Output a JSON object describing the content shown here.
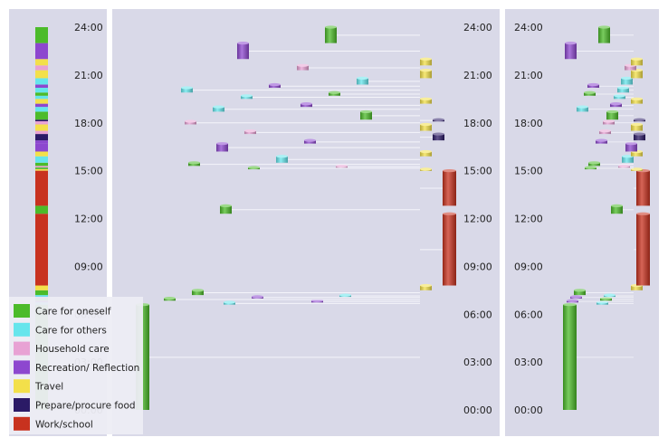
{
  "chart_data": {
    "type": "timeline",
    "y_unit": "hour of day",
    "ylim": [
      0,
      24
    ],
    "tick_labels": [
      "24:00",
      "21:00",
      "18:00",
      "15:00",
      "12:00",
      "09:00",
      "06:00",
      "03:00",
      "00:00"
    ],
    "tick_values": [
      24,
      21,
      18,
      15,
      12,
      9,
      6,
      3,
      0
    ],
    "categories": [
      {
        "name": "Care for oneself",
        "color": "#4cbb2a"
      },
      {
        "name": "Care for others",
        "color": "#66e5ec"
      },
      {
        "name": "Household care",
        "color": "#e8a2d4"
      },
      {
        "name": "Recreation/ Reflection",
        "color": "#8d47cf"
      },
      {
        "name": "Travel",
        "color": "#f3e04a"
      },
      {
        "name": "Prepare/procure food",
        "color": "#2b1a66"
      },
      {
        "name": "Work/school",
        "color": "#c8321f"
      }
    ],
    "panels": [
      {
        "name": "left",
        "kind": "stacked-bar"
      },
      {
        "name": "middle",
        "kind": "spread-timeline"
      },
      {
        "name": "right",
        "kind": "compact-timeline"
      }
    ],
    "segments": [
      {
        "start": 0.0,
        "end": 6.6,
        "category": "Care for oneself"
      },
      {
        "start": 6.6,
        "end": 6.75,
        "category": "Care for others"
      },
      {
        "start": 6.75,
        "end": 6.85,
        "category": "Recreation/ Reflection"
      },
      {
        "start": 6.85,
        "end": 7.0,
        "category": "Care for oneself"
      },
      {
        "start": 7.0,
        "end": 7.1,
        "category": "Recreation/ Reflection"
      },
      {
        "start": 7.1,
        "end": 7.2,
        "category": "Care for others"
      },
      {
        "start": 7.2,
        "end": 7.5,
        "category": "Care for oneself"
      },
      {
        "start": 7.5,
        "end": 7.8,
        "category": "Travel"
      },
      {
        "start": 7.8,
        "end": 12.3,
        "category": "Work/school"
      },
      {
        "start": 12.3,
        "end": 12.8,
        "category": "Care for oneself"
      },
      {
        "start": 12.8,
        "end": 15.0,
        "category": "Work/school"
      },
      {
        "start": 15.0,
        "end": 15.1,
        "category": "Travel"
      },
      {
        "start": 15.1,
        "end": 15.2,
        "category": "Care for oneself"
      },
      {
        "start": 15.2,
        "end": 15.3,
        "category": "Household care"
      },
      {
        "start": 15.3,
        "end": 15.5,
        "category": "Care for oneself"
      },
      {
        "start": 15.5,
        "end": 15.9,
        "category": "Care for others"
      },
      {
        "start": 15.9,
        "end": 16.2,
        "category": "Travel"
      },
      {
        "start": 16.2,
        "end": 16.7,
        "category": "Recreation/ Reflection"
      },
      {
        "start": 16.7,
        "end": 16.9,
        "category": "Recreation/ Reflection"
      },
      {
        "start": 16.9,
        "end": 17.3,
        "category": "Prepare/procure food"
      },
      {
        "start": 17.3,
        "end": 17.5,
        "category": "Household care"
      },
      {
        "start": 17.5,
        "end": 17.9,
        "category": "Travel"
      },
      {
        "start": 17.9,
        "end": 18.1,
        "category": "Household care"
      },
      {
        "start": 18.1,
        "end": 18.2,
        "category": "Prepare/procure food"
      },
      {
        "start": 18.2,
        "end": 18.7,
        "category": "Care for oneself"
      },
      {
        "start": 18.7,
        "end": 19.0,
        "category": "Care for others"
      },
      {
        "start": 19.0,
        "end": 19.2,
        "category": "Recreation/ Reflection"
      },
      {
        "start": 19.2,
        "end": 19.5,
        "category": "Travel"
      },
      {
        "start": 19.5,
        "end": 19.7,
        "category": "Care for others"
      },
      {
        "start": 19.7,
        "end": 19.9,
        "category": "Care for oneself"
      },
      {
        "start": 19.9,
        "end": 20.2,
        "category": "Care for others"
      },
      {
        "start": 20.2,
        "end": 20.4,
        "category": "Recreation/ Reflection"
      },
      {
        "start": 20.4,
        "end": 20.8,
        "category": "Care for others"
      },
      {
        "start": 20.8,
        "end": 21.3,
        "category": "Travel"
      },
      {
        "start": 21.3,
        "end": 21.6,
        "category": "Household care"
      },
      {
        "start": 21.6,
        "end": 22.0,
        "category": "Travel"
      },
      {
        "start": 22.0,
        "end": 23.0,
        "category": "Recreation/ Reflection"
      },
      {
        "start": 23.0,
        "end": 24.0,
        "category": "Care for oneself"
      }
    ]
  }
}
